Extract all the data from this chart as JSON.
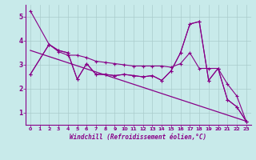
{
  "xlabel": "Windchill (Refroidissement éolien,°C)",
  "background_color": "#c8eaea",
  "line_color": "#880088",
  "xlim": [
    -0.5,
    23.5
  ],
  "ylim": [
    0.5,
    5.5
  ],
  "xticks": [
    0,
    1,
    2,
    3,
    4,
    5,
    6,
    7,
    8,
    9,
    10,
    11,
    12,
    13,
    14,
    15,
    16,
    17,
    18,
    19,
    20,
    21,
    22,
    23
  ],
  "yticks": [
    1,
    2,
    3,
    4,
    5
  ],
  "grid_color": "#aacccc",
  "lines": [
    {
      "x": [
        0,
        2,
        3,
        4,
        5,
        6,
        7,
        8,
        9,
        10,
        11,
        12,
        13,
        14,
        15,
        16,
        17,
        18,
        19,
        20,
        21,
        22,
        23
      ],
      "y": [
        5.25,
        3.85,
        3.6,
        3.5,
        2.4,
        3.05,
        2.6,
        2.6,
        2.55,
        2.6,
        2.55,
        2.5,
        2.55,
        2.35,
        2.75,
        3.5,
        4.7,
        4.8,
        2.35,
        2.85,
        1.55,
        1.25,
        0.65
      ]
    },
    {
      "x": [
        0,
        2,
        3,
        4,
        5,
        6,
        7,
        8,
        9,
        10,
        11,
        12,
        13,
        14,
        15,
        16,
        17,
        18,
        19,
        20,
        21,
        22,
        23
      ],
      "y": [
        2.6,
        3.85,
        3.6,
        3.5,
        2.4,
        3.05,
        2.6,
        2.6,
        2.55,
        2.6,
        2.55,
        2.5,
        2.55,
        2.35,
        2.75,
        3.5,
        4.7,
        4.8,
        2.35,
        2.85,
        1.55,
        1.25,
        0.65
      ]
    },
    {
      "x": [
        0,
        23
      ],
      "y": [
        3.6,
        0.65
      ]
    },
    {
      "x": [
        0,
        2,
        3,
        4,
        5,
        6,
        7,
        8,
        9,
        10,
        11,
        12,
        13,
        14,
        15,
        16,
        17,
        18,
        19,
        20,
        21,
        22,
        23
      ],
      "y": [
        2.6,
        3.85,
        3.55,
        3.4,
        3.4,
        3.3,
        3.15,
        3.1,
        3.05,
        3.0,
        2.95,
        2.95,
        2.95,
        2.95,
        2.9,
        3.05,
        3.5,
        2.85,
        2.85,
        2.85,
        2.2,
        1.7,
        0.65
      ]
    }
  ]
}
